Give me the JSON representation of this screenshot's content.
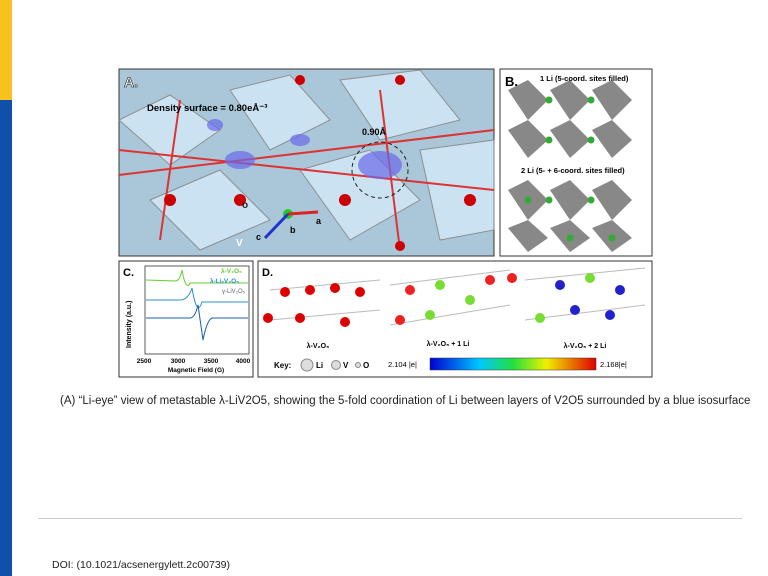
{
  "figure": {
    "panel_a": {
      "label": "A.",
      "density": "Density surface = 0.80eÅ⁻³",
      "distance": "0.90Å",
      "axes": [
        "a",
        "b",
        "c"
      ],
      "site": "V",
      "site_o": "o"
    },
    "panel_b": {
      "label": "B.",
      "top": "1 Li (5-coord. sites filled)",
      "bottom": "2 Li (5- + 6-coord. sites filled)"
    },
    "panel_c": {
      "label": "C.",
      "legend": [
        "λ-V₂O₅",
        "λ-LiₓV₂O₅",
        "γ-LiV₂O₅"
      ],
      "ylabel": "Intensity (a.u.)",
      "xticks": [
        "2500",
        "3000",
        "3500",
        "4000"
      ],
      "xlabel": "Magnetic Field (G)"
    },
    "panel_d": {
      "label": "D.",
      "structures": [
        "λ-V₂O₅",
        "λ-V₂O₅ + 1 Li",
        "λ-V₂O₅ + 2 Li"
      ],
      "key": "Key:",
      "key_items": [
        "Li",
        "V",
        "O"
      ],
      "scale_min": "2.104 |e|",
      "scale_max": "2.168|e|"
    }
  },
  "caption": "(A) “Li-eye” view of metastable λ-LiV2O5, showing the 5-fold coordination of Li between layers of V2O5 surrounded by a blue isosurface",
  "doi": "DOI: (10.1021/acsenergylett.2c00739)"
}
